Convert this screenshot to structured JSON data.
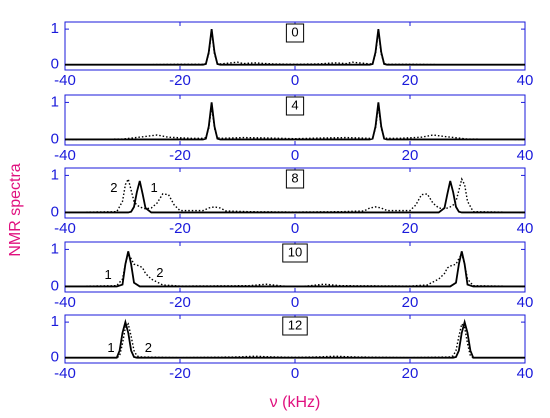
{
  "ylabel": "NMR spectra",
  "xlabel": "ν (kHz)",
  "chart_data": [
    {
      "type": "line",
      "label": "0",
      "xlim": [
        -40,
        40
      ],
      "ylim": [
        -0.15,
        1.2
      ],
      "xticks": [
        -40,
        -20,
        0,
        20,
        40
      ],
      "yticks": [
        0,
        1
      ],
      "x": [
        -40,
        -25,
        -20,
        -16,
        -15.5,
        -15,
        -14.5,
        -14,
        -13.5,
        -13,
        -10,
        -9,
        -7,
        -4,
        0,
        4,
        7,
        9,
        10,
        13,
        13.5,
        14,
        14.5,
        15,
        15.5,
        16,
        20,
        25,
        40
      ],
      "series": [
        {
          "color": "#000000",
          "dash": "solid",
          "values": [
            0,
            0,
            0,
            0,
            0.02,
            0.35,
            1,
            0.35,
            0.02,
            0,
            0,
            0,
            0,
            0,
            0,
            0,
            0,
            0,
            0,
            0,
            0.02,
            0.35,
            1,
            0.35,
            0.02,
            0,
            0,
            0,
            0
          ]
        },
        {
          "color": "#000000",
          "dash": "dotted",
          "values": [
            0,
            0,
            0.01,
            0.01,
            0.03,
            0.3,
            0.95,
            0.3,
            0.03,
            0.02,
            0.07,
            0.03,
            0.05,
            0.02,
            0.01,
            0.02,
            0.05,
            0.03,
            0.07,
            0.02,
            0.03,
            0.3,
            0.95,
            0.3,
            0.03,
            0.01,
            0.01,
            0,
            0
          ]
        }
      ]
    },
    {
      "type": "line",
      "label": "4",
      "xlim": [
        -40,
        40
      ],
      "ylim": [
        -0.15,
        1.2
      ],
      "xticks": [
        -40,
        -20,
        0,
        20,
        40
      ],
      "yticks": [
        0,
        1
      ],
      "x": [
        -40,
        -30,
        -26,
        -24,
        -22,
        -18,
        -16,
        -15.5,
        -15,
        -14.5,
        -14,
        -13.5,
        -13,
        -9,
        -5,
        0,
        5,
        9,
        13,
        13.5,
        14,
        14.5,
        15,
        15.5,
        16,
        18,
        22,
        24,
        26,
        30,
        40
      ],
      "series": [
        {
          "color": "#000000",
          "dash": "solid",
          "values": [
            0,
            0,
            0,
            0,
            0,
            0,
            0,
            0.02,
            0.35,
            1,
            0.35,
            0.02,
            0,
            0,
            0,
            0,
            0,
            0,
            0,
            0.02,
            0.35,
            1,
            0.35,
            0.02,
            0,
            0,
            0,
            0,
            0,
            0,
            0
          ]
        },
        {
          "color": "#000000",
          "dash": "dotted",
          "values": [
            0,
            0.01,
            0.08,
            0.12,
            0.06,
            0.03,
            0.03,
            0.05,
            0.3,
            0.9,
            0.3,
            0.05,
            0.03,
            0.05,
            0.04,
            0.02,
            0.04,
            0.05,
            0.03,
            0.05,
            0.3,
            0.9,
            0.3,
            0.05,
            0.03,
            0.03,
            0.06,
            0.12,
            0.08,
            0.01,
            0
          ]
        }
      ]
    },
    {
      "type": "line",
      "label": "8",
      "xlim": [
        -40,
        40
      ],
      "ylim": [
        -0.15,
        1.2
      ],
      "xticks": [
        -40,
        -20,
        0,
        20,
        40
      ],
      "yticks": [
        0,
        1
      ],
      "annotations": [
        "2",
        "1"
      ],
      "x": [
        -40,
        -31,
        -30,
        -29.5,
        -29,
        -28.5,
        -28,
        -27.5,
        -27,
        -26.5,
        -26,
        -25,
        -24,
        -23,
        -22,
        -21,
        -20,
        -16,
        -15,
        -14,
        -13,
        -12,
        -8,
        0,
        8,
        12,
        13,
        14,
        15,
        16,
        20,
        21,
        22,
        23,
        24,
        25,
        26,
        26.5,
        27,
        27.5,
        28,
        28.5,
        29,
        29.5,
        30,
        31,
        40
      ],
      "series": [
        {
          "color": "#000000",
          "dash": "solid",
          "values": [
            0,
            0,
            0,
            0,
            0,
            0.02,
            0.15,
            0.55,
            0.85,
            0.5,
            0.12,
            0,
            0,
            0,
            0,
            0,
            0,
            0,
            0,
            0,
            0,
            0,
            0,
            0,
            0,
            0,
            0,
            0,
            0,
            0,
            0,
            0,
            0,
            0,
            0,
            0,
            0.12,
            0.5,
            0.85,
            0.55,
            0.15,
            0.02,
            0,
            0,
            0,
            0,
            0
          ]
        },
        {
          "color": "#000000",
          "dash": "dotted",
          "values": [
            0,
            0.02,
            0.3,
            0.75,
            0.9,
            0.6,
            0.3,
            0.2,
            0.15,
            0.12,
            0.1,
            0.12,
            0.25,
            0.5,
            0.48,
            0.2,
            0.05,
            0.05,
            0.12,
            0.15,
            0.12,
            0.04,
            0.02,
            0.01,
            0.02,
            0.04,
            0.12,
            0.15,
            0.12,
            0.05,
            0.05,
            0.2,
            0.48,
            0.5,
            0.25,
            0.12,
            0.1,
            0.12,
            0.15,
            0.2,
            0.3,
            0.6,
            0.9,
            0.75,
            0.3,
            0.02,
            0
          ]
        }
      ]
    },
    {
      "type": "line",
      "label": "10",
      "xlim": [
        -40,
        40
      ],
      "ylim": [
        -0.15,
        1.2
      ],
      "xticks": [
        -40,
        -20,
        0,
        20,
        40
      ],
      "yticks": [
        0,
        1
      ],
      "annotations": [
        "1",
        "2"
      ],
      "x": [
        -40,
        -31,
        -30,
        -29.5,
        -29,
        -28.5,
        -28,
        -27,
        -26.5,
        -26,
        -25,
        -24,
        -23,
        -20,
        -8,
        -5,
        -2,
        0,
        2,
        5,
        8,
        20,
        23,
        24,
        25,
        26,
        26.5,
        27,
        28,
        28.5,
        29,
        29.5,
        30,
        31,
        40
      ],
      "series": [
        {
          "color": "#000000",
          "dash": "solid",
          "values": [
            0,
            0,
            0.05,
            0.6,
            0.95,
            0.6,
            0.1,
            0,
            0,
            0,
            0,
            0,
            0,
            0,
            0,
            0,
            0,
            0,
            0,
            0,
            0,
            0,
            0,
            0,
            0,
            0,
            0,
            0,
            0.1,
            0.6,
            0.95,
            0.6,
            0.05,
            0,
            0
          ]
        },
        {
          "color": "#000000",
          "dash": "dotted",
          "values": [
            0,
            0.02,
            0.2,
            0.6,
            0.88,
            0.75,
            0.6,
            0.55,
            0.5,
            0.35,
            0.2,
            0.12,
            0.04,
            0.01,
            0.02,
            0.06,
            0.01,
            0,
            0.01,
            0.06,
            0.02,
            0.01,
            0.04,
            0.12,
            0.2,
            0.35,
            0.5,
            0.55,
            0.6,
            0.75,
            0.88,
            0.6,
            0.2,
            0.02,
            0
          ]
        }
      ]
    },
    {
      "type": "line",
      "label": "12",
      "xlim": [
        -40,
        40
      ],
      "ylim": [
        -0.15,
        1.2
      ],
      "xticks": [
        -40,
        -20,
        0,
        20,
        40
      ],
      "yticks": [
        0,
        1
      ],
      "annotations": [
        "1",
        "2"
      ],
      "x": [
        -40,
        -31,
        -30.5,
        -30,
        -29.5,
        -29,
        -28.5,
        -28,
        -27.5,
        -27,
        -20,
        -10,
        -7,
        -4,
        0,
        4,
        7,
        10,
        20,
        27,
        27.5,
        28,
        28.5,
        29,
        29.5,
        30,
        30.5,
        31,
        40
      ],
      "series": [
        {
          "color": "#000000",
          "dash": "solid",
          "values": [
            0,
            0,
            0.2,
            0.7,
            1,
            0.7,
            0.2,
            0.02,
            0,
            0,
            0,
            0,
            0,
            0,
            0,
            0,
            0,
            0,
            0,
            0,
            0,
            0.02,
            0.2,
            0.7,
            1,
            0.7,
            0.2,
            0,
            0
          ]
        },
        {
          "color": "#000000",
          "dash": "dotted",
          "values": [
            0,
            0,
            0.05,
            0.4,
            0.85,
            0.95,
            0.6,
            0.2,
            0.05,
            0.02,
            0,
            0.02,
            0.04,
            0.02,
            0.01,
            0.02,
            0.04,
            0.02,
            0,
            0.02,
            0.05,
            0.2,
            0.6,
            0.95,
            0.85,
            0.4,
            0.05,
            0,
            0
          ]
        }
      ]
    }
  ]
}
